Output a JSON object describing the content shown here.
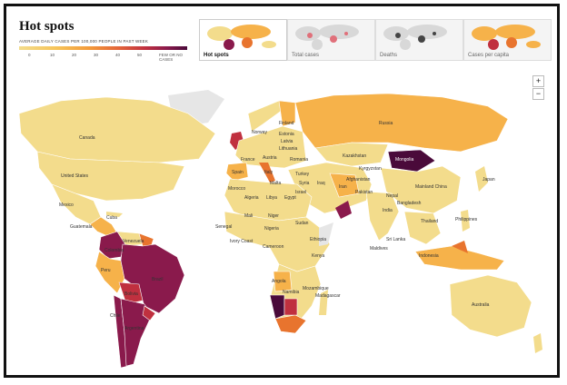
{
  "header": {
    "title": "Hot spots",
    "subtitle": "AVERAGE DAILY CASES PER 100,000 PEOPLE IN PAST WEEK",
    "scale_ticks": [
      "0",
      "10",
      "20",
      "30",
      "40",
      "50"
    ],
    "date_line1": "FEW OR NO",
    "date_line2": "CASES"
  },
  "tabs": [
    {
      "label": "Hot spots",
      "active": true
    },
    {
      "label": "Total cases",
      "active": false
    },
    {
      "label": "Deaths",
      "active": false
    },
    {
      "label": "Cases per capita",
      "active": false
    }
  ],
  "zoom": {
    "in": "+",
    "out": "−"
  },
  "colors": {
    "ocean": "#ffffff",
    "low": "#f3dc8c",
    "mid": "#f6b24a",
    "high": "#e8742e",
    "higher": "#c0303f",
    "top": "#8a1a4c",
    "max": "#4a0a3a",
    "nodata": "#e6e6e6"
  },
  "labels": {
    "canada": "Canada",
    "us": "United States",
    "mexico": "Mexico",
    "cuba": "Cuba",
    "guatemala": "Guatemala",
    "venezuela": "Venezuela",
    "colombia": "Colombia",
    "peru": "Peru",
    "brazil": "Brazil",
    "bolivia": "Bolivia",
    "argentina": "Argentina",
    "chile": "Chile",
    "norway": "Norway",
    "finland": "Finland",
    "estonia": "Estonia",
    "latvia": "Latvia",
    "lithuania": "Lithuania",
    "france": "France",
    "austria": "Austria",
    "spain": "Spain",
    "italy": "Italy",
    "romania": "Romania",
    "turkey": "Turkey",
    "syria": "Syria",
    "iraq": "Iraq",
    "iran": "Iran",
    "israel": "Israel",
    "egypt": "Egypt",
    "libya": "Libya",
    "algeria": "Algeria",
    "morocco": "Morocco",
    "malta": "Malta",
    "mali": "Mali",
    "niger": "Niger",
    "senegal": "Senegal",
    "nigeria": "Nigeria",
    "ivory": "Ivory Coast",
    "cameroon": "Cameroon",
    "sudan": "Sudan",
    "ethiopia": "Ethiopia",
    "kenya": "Kenya",
    "angola": "Angola",
    "namibia": "Namibia",
    "mozambique": "Mozambique",
    "madagascar": "Madagascar",
    "russia": "Russia",
    "kazakhstan": "Kazakhstan",
    "kyrgyzstan": "Kyrgyzstan",
    "afghanistan": "Afghanistan",
    "pakistan": "Pakistan",
    "nepal": "Nepal",
    "india": "India",
    "bangladesh": "Bangladesh",
    "srilanka": "Sri Lanka",
    "maldives": "Maldives",
    "china": "Mainland China",
    "japan": "Japan",
    "thailand": "Thailand",
    "philippines": "Philippines",
    "indonesia": "Indonesia",
    "australia": "Australia",
    "mongolia": "Mongolia"
  }
}
